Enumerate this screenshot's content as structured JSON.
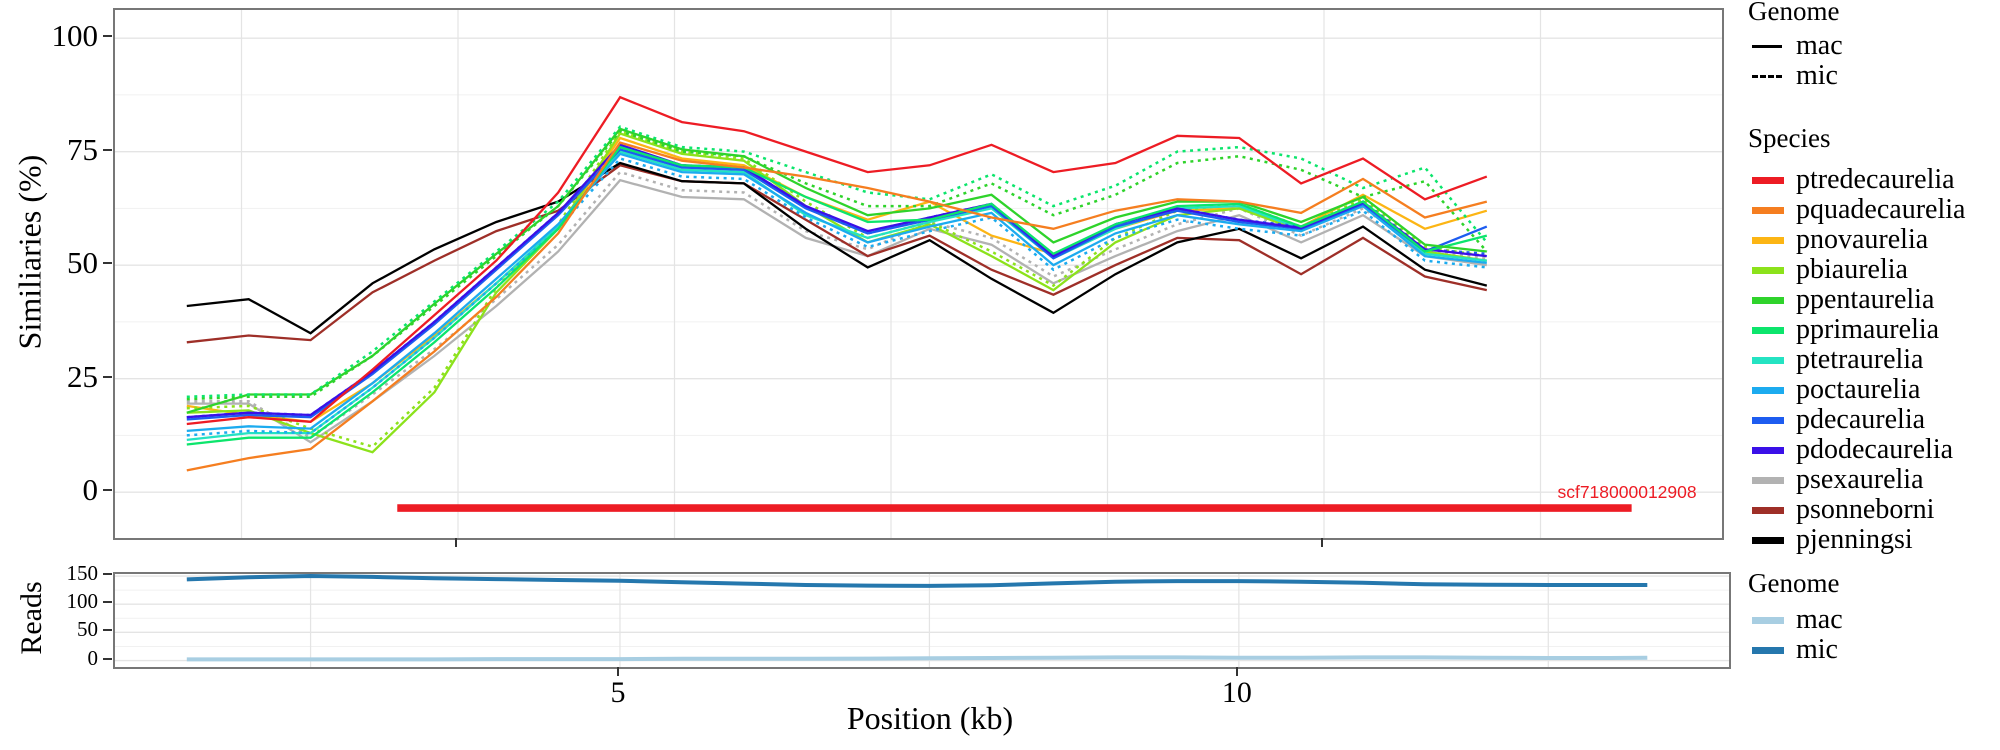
{
  "figure": {
    "y_axis_title": "Similiaries (%)",
    "reads_axis_title": "Reads",
    "x_axis_title": "Position (kb)"
  },
  "legend": {
    "genome": {
      "title": "Genome",
      "items": [
        {
          "label": "mac",
          "linetype": "solid"
        },
        {
          "label": "mic",
          "linetype": "dashed"
        }
      ]
    },
    "species": {
      "title": "Species",
      "items": [
        {
          "label": "ptredecaurelia",
          "color": "#ed1c24"
        },
        {
          "label": "pquadecaurelia",
          "color": "#f57e20"
        },
        {
          "label": "pnovaurelia",
          "color": "#fcb514"
        },
        {
          "label": "pbiaurelia",
          "color": "#8ce21b"
        },
        {
          "label": "ppentaurelia",
          "color": "#2fd32b"
        },
        {
          "label": "pprimaurelia",
          "color": "#0ce56c"
        },
        {
          "label": "ptetraurelia",
          "color": "#24e3c2"
        },
        {
          "label": "poctaurelia",
          "color": "#1cabef"
        },
        {
          "label": "pdecaurelia",
          "color": "#1d5cf0"
        },
        {
          "label": "pdodecaurelia",
          "color": "#3a10e8"
        },
        {
          "label": "psexaurelia",
          "color": "#b2b2b2"
        },
        {
          "label": "psonneborni",
          "color": "#9e2f28"
        },
        {
          "label": "pjenningsi",
          "color": "#000000"
        }
      ]
    },
    "reads_genome": {
      "title": "Genome",
      "items": [
        {
          "label": "mac",
          "color": "#a8cee2"
        },
        {
          "label": "mic",
          "color": "#2577ad"
        }
      ]
    }
  },
  "chart_data": [
    {
      "type": "line",
      "panel": "similarity",
      "ylabel": "Similiaries (%)",
      "xlabel": "Position (kb)",
      "grid": true,
      "legend_position": "right",
      "xlim": [
        0.92,
        13.9
      ],
      "ylim": [
        -10.1,
        106.2
      ],
      "yticks": [
        0,
        25,
        50,
        75,
        100
      ],
      "yticks_minor": [
        12.5,
        37.5,
        62.5,
        87.5
      ],
      "x_kb": [
        1.5,
        2,
        2.5,
        3,
        3.5,
        4,
        4.5,
        5,
        5.5,
        6,
        6.5,
        7,
        7.5,
        8,
        8.5,
        9,
        9.5,
        10,
        10.5,
        11,
        11.5,
        12
      ],
      "annotation": {
        "label": "scf718000012908",
        "color": "#ed1c24",
        "x_start_kb": 3.2,
        "x_end_kb": 13.17,
        "y_pct": -3.5
      },
      "series": [
        {
          "species": "psexaurelia",
          "genome": "mac",
          "color": "#b2b2b2",
          "linetype": "solid",
          "values": [
            19.5,
            19.5,
            11,
            20,
            30,
            41,
            53,
            68.7,
            65,
            64.5,
            56,
            52,
            58,
            54.5,
            46,
            52,
            57.5,
            61,
            55,
            61,
            52,
            50
          ]
        },
        {
          "species": "psexaurelia",
          "genome": "mic",
          "color": "#b2b2b2",
          "linetype": "dashed",
          "values": [
            20,
            20,
            12,
            21.5,
            31.5,
            42.5,
            54.5,
            70.5,
            66.5,
            66,
            57.5,
            53.5,
            59.5,
            56,
            47.5,
            53.5,
            59,
            62.5,
            56.5,
            62.5,
            53.5,
            51.5
          ]
        },
        {
          "species": "psonneborni",
          "genome": "mac",
          "color": "#9e2f28",
          "linetype": "solid",
          "values": [
            33,
            34.5,
            33.5,
            44,
            51,
            57.5,
            62,
            72,
            68.5,
            68,
            60,
            52,
            56.5,
            49,
            43.5,
            50,
            56,
            55.5,
            48,
            56,
            47.5,
            44.5
          ]
        },
        {
          "species": "pjenningsi",
          "genome": "mac",
          "color": "#000000",
          "linetype": "solid",
          "values": [
            41,
            42.5,
            35,
            46,
            53.5,
            59.5,
            64,
            72.5,
            68.5,
            68,
            58,
            49.5,
            55.5,
            47,
            39.5,
            48,
            55,
            58,
            51.5,
            58.5,
            49,
            45.5
          ]
        },
        {
          "species": "pnovaurelia",
          "genome": "mac",
          "color": "#fcb514",
          "linetype": "solid",
          "values": [
            19,
            17,
            15.5,
            24,
            34.5,
            46,
            58,
            78,
            73.5,
            72,
            65,
            60,
            64,
            56.5,
            52.5,
            58,
            62,
            62.5,
            58.5,
            65.5,
            58,
            62
          ]
        },
        {
          "species": "pbiaurelia",
          "genome": "mac",
          "color": "#8ce21b",
          "linetype": "solid",
          "values": [
            17.5,
            18,
            13,
            8.8,
            22,
            44,
            58,
            79,
            74.5,
            73,
            63,
            55,
            59,
            52,
            44.5,
            55,
            61,
            62.5,
            57.5,
            63.5,
            53,
            51
          ]
        },
        {
          "species": "pbiaurelia",
          "genome": "mic",
          "color": "#8ce21b",
          "linetype": "dashed",
          "values": [
            18.5,
            19,
            14,
            10,
            23,
            45,
            59,
            79.5,
            75,
            73.5,
            64,
            56,
            59.5,
            53,
            45.5,
            56,
            62,
            63.5,
            58.5,
            64.5,
            54,
            52
          ]
        },
        {
          "species": "ptetraurelia",
          "genome": "mac",
          "color": "#24e3c2",
          "linetype": "solid",
          "values": [
            11.5,
            13,
            13,
            23,
            34,
            46,
            58.5,
            75,
            71,
            70.5,
            61,
            56,
            59.5,
            62.5,
            51.5,
            58,
            62.5,
            63,
            58,
            63.5,
            52.5,
            51
          ]
        },
        {
          "species": "poctaurelia",
          "genome": "mac",
          "color": "#1cabef",
          "linetype": "solid",
          "values": [
            13.5,
            14.5,
            14,
            24,
            35,
            47,
            59,
            74.5,
            70.5,
            70,
            61.5,
            55,
            58.5,
            61.5,
            50,
            57,
            61,
            59,
            57.5,
            63,
            52,
            50.5
          ]
        },
        {
          "species": "poctaurelia",
          "genome": "mic",
          "color": "#1cabef",
          "linetype": "dashed",
          "values": [
            12.5,
            13.5,
            13,
            23,
            34,
            46,
            58,
            73.5,
            69.5,
            69,
            60.5,
            54,
            57.5,
            60.5,
            49,
            56,
            60,
            58,
            56.5,
            62,
            51,
            49.5
          ]
        },
        {
          "species": "pdecaurelia",
          "genome": "mac",
          "color": "#1d5cf0",
          "linetype": "solid",
          "values": [
            16,
            17,
            16.5,
            26,
            37,
            49,
            61,
            75.5,
            71.5,
            71,
            62.5,
            57,
            60,
            63,
            51.5,
            58.5,
            62,
            59.5,
            58,
            63.5,
            53,
            58.5
          ]
        },
        {
          "species": "pdecaurelia",
          "genome": "mic",
          "color": "#1d5cf0",
          "linetype": "dashed",
          "values": [
            16.5,
            17.5,
            17,
            26.5,
            37.5,
            49.5,
            61.5,
            76,
            72,
            71.5,
            63,
            57,
            60.5,
            63.5,
            52,
            59,
            62.5,
            60,
            58.5,
            64,
            53.5,
            52.5
          ]
        },
        {
          "species": "pdodecaurelia",
          "genome": "mac",
          "color": "#3a10e8",
          "linetype": "solid",
          "values": [
            16.5,
            17.5,
            17,
            26.5,
            37.5,
            49.5,
            61.5,
            76.5,
            72,
            71.5,
            63,
            57.5,
            60.5,
            63.5,
            52,
            59,
            62.5,
            60,
            58.2,
            63.8,
            53.5,
            52
          ]
        },
        {
          "species": "pprimaurelia",
          "genome": "mac",
          "color": "#0ce56c",
          "linetype": "solid",
          "values": [
            10.5,
            12,
            12,
            22,
            33,
            45,
            58,
            76,
            72,
            71.5,
            65,
            59.5,
            60,
            63.5,
            52.5,
            59,
            63,
            63.5,
            58.5,
            64,
            53,
            56.5
          ]
        },
        {
          "species": "ppentaurelia",
          "genome": "mac",
          "color": "#2fd32b",
          "linetype": "solid",
          "values": [
            17.5,
            21.5,
            21.5,
            30,
            41.5,
            52.5,
            63,
            80,
            75.5,
            74,
            67,
            61,
            62.5,
            65.5,
            55,
            60.5,
            64,
            64,
            59.5,
            65,
            54.5,
            53
          ]
        },
        {
          "species": "ppentaurelia",
          "genome": "mic",
          "color": "#2fd32b",
          "linetype": "dashed",
          "values": [
            20.5,
            21,
            21,
            30,
            41,
            52,
            63,
            79.5,
            75,
            74,
            68,
            63,
            63,
            68,
            61,
            65.5,
            72.5,
            74,
            71,
            65,
            68.5,
            53
          ]
        },
        {
          "species": "pprimaurelia",
          "genome": "mic",
          "color": "#0ce56c",
          "linetype": "dashed",
          "values": [
            21,
            21.5,
            21.5,
            31,
            42,
            53,
            64,
            80.5,
            76,
            75,
            70.5,
            66,
            64.5,
            70,
            63,
            67.5,
            75,
            76,
            73.5,
            67,
            71.5,
            55
          ]
        },
        {
          "species": "pquadecaurelia",
          "genome": "mac",
          "color": "#f57e20",
          "linetype": "solid",
          "values": [
            4.8,
            7.5,
            9.5,
            20,
            31,
            43,
            57,
            77,
            73,
            71.5,
            69.5,
            67,
            64,
            60.5,
            58,
            62,
            64.5,
            64,
            61.5,
            69,
            60.5,
            64
          ]
        },
        {
          "species": "ptredecaurelia",
          "genome": "mac",
          "color": "#ed1c24",
          "linetype": "solid",
          "values": [
            15,
            16.5,
            15.5,
            27,
            39,
            51,
            66,
            87,
            81.5,
            79.5,
            75,
            70.5,
            72,
            76.5,
            70.5,
            72.5,
            78.5,
            78,
            68,
            73.5,
            64.5,
            69.5
          ]
        }
      ]
    },
    {
      "type": "line",
      "panel": "reads",
      "ylabel": "Reads",
      "xlabel": "Position (kb)",
      "grid": true,
      "xlim": [
        0.92,
        13.96
      ],
      "ylim": [
        -11.5,
        153.6
      ],
      "yticks": [
        0,
        50,
        100,
        150
      ],
      "yticks_minor": [
        25,
        75,
        125
      ],
      "xticks": [
        5,
        10
      ],
      "xticks_minor": [
        2.5,
        7.5,
        12.5
      ],
      "x_kb": [
        1.5,
        2,
        2.5,
        3,
        3.5,
        4,
        4.5,
        5,
        5.5,
        6,
        6.5,
        7,
        7.5,
        8,
        8.5,
        9,
        9.5,
        10,
        10.5,
        11,
        11.5,
        12,
        12.5,
        13,
        13.3
      ],
      "series": [
        {
          "genome": "mac",
          "color": "#a8cee2",
          "linetype": "solid",
          "values": [
            2,
            2,
            2,
            2,
            2,
            2.5,
            2.5,
            2.5,
            3,
            3,
            3,
            3.5,
            4,
            4.5,
            5,
            5.5,
            5.5,
            5,
            5,
            5.5,
            5.5,
            5,
            4.5,
            4.5,
            5
          ]
        },
        {
          "genome": "mic",
          "color": "#2577ad",
          "linetype": "solid",
          "values": [
            144,
            148,
            150,
            148.5,
            146,
            144.5,
            143,
            141.5,
            139,
            136.5,
            134,
            133,
            132.5,
            133.5,
            137,
            140,
            141,
            141,
            140,
            138,
            135.5,
            134.5,
            134,
            134,
            134
          ]
        }
      ]
    }
  ]
}
